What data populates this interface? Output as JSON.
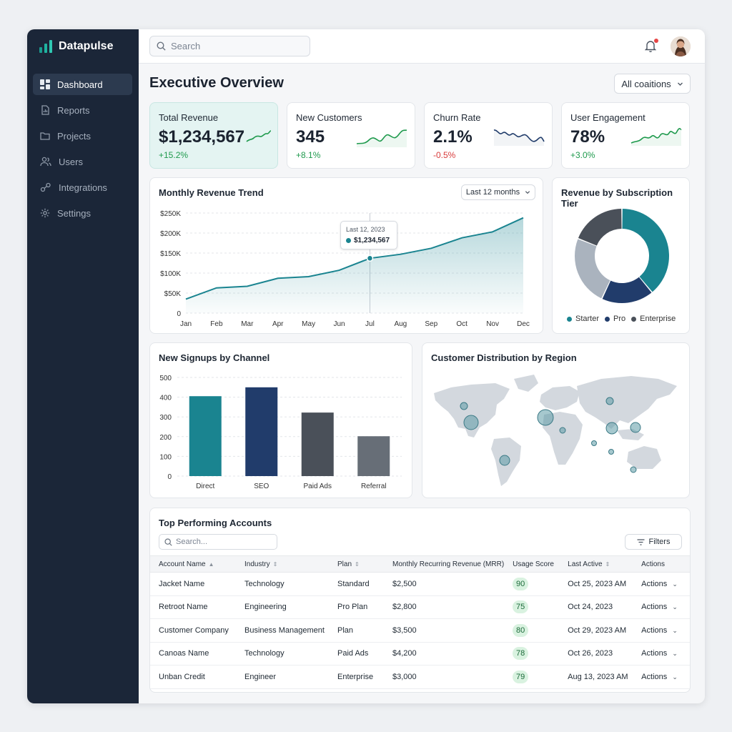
{
  "app": {
    "name": "Datapulse"
  },
  "sidebar": {
    "items": [
      {
        "label": "Dashboard",
        "icon": "dashboard-icon",
        "active": true
      },
      {
        "label": "Reports",
        "icon": "reports-icon"
      },
      {
        "label": "Projects",
        "icon": "folder-icon"
      },
      {
        "label": "Users",
        "icon": "users-icon"
      },
      {
        "label": "Integrations",
        "icon": "integrations-icon"
      },
      {
        "label": "Settings",
        "icon": "gear-icon"
      }
    ]
  },
  "topbar": {
    "search_placeholder": "Search"
  },
  "page": {
    "title": "Executive Overview",
    "filter": "All coaitions"
  },
  "kpis": [
    {
      "title": "Total Revenue",
      "value": "$1,234,567",
      "delta": "+15.2%",
      "trend": "up",
      "highlight": true
    },
    {
      "title": "New Customers",
      "value": "345",
      "delta": "+8.1%",
      "trend": "up"
    },
    {
      "title": "Churn Rate",
      "value": "2.1%",
      "delta": "-0.5%",
      "trend": "down"
    },
    {
      "title": "User Engagement",
      "value": "78%",
      "delta": "+3.0%",
      "trend": "up"
    }
  ],
  "colors": {
    "teal": "#1a8490",
    "navy": "#213c6b",
    "slate": "#4a5059",
    "gray": "#a9b2bd",
    "green": "#1f9a4d",
    "red": "#d83b3b"
  },
  "revenue_chart": {
    "title": "Monthly Revenue Trend",
    "range_label": "Last 12 months",
    "tooltip_date": "Last 12, 2023",
    "tooltip_value": "$1,234,567",
    "chart_data": {
      "type": "area",
      "categories": [
        "Jan",
        "Feb",
        "Mar",
        "Apr",
        "May",
        "Jun",
        "Jul",
        "Aug",
        "Sep",
        "Oct",
        "Nov",
        "Dec"
      ],
      "values": [
        35000,
        63000,
        67000,
        87000,
        91000,
        107000,
        137000,
        147000,
        162000,
        188000,
        203000,
        238000
      ],
      "y_ticks": [
        "$250K",
        "$200K",
        "$150K",
        "$100K",
        "$50K",
        "0"
      ],
      "ylim": [
        0,
        250000
      ],
      "highlight_index": 6,
      "grid": true
    }
  },
  "tier_chart": {
    "title": "Revenue by Subscription Tier",
    "chart_data": {
      "type": "pie",
      "slices": [
        {
          "value": 39,
          "color": "#1a8490"
        },
        {
          "value": 18,
          "color": "#213c6b"
        },
        {
          "value": 24,
          "color": "#aab3be"
        },
        {
          "value": 19,
          "color": "#4a5059"
        }
      ],
      "legend": [
        {
          "name": "Starter",
          "color": "#1a8490"
        },
        {
          "name": "Pro",
          "color": "#213c6b"
        },
        {
          "name": "Enterprise",
          "color": "#4a5059"
        }
      ]
    }
  },
  "signups_chart": {
    "title": "New Signups by Channel",
    "chart_data": {
      "type": "bar",
      "categories": [
        "Direct",
        "SEO",
        "Paid Ads",
        "Referral"
      ],
      "values": [
        405,
        450,
        322,
        202
      ],
      "colors": [
        "#1a8490",
        "#213c6b",
        "#4a5059",
        "#676e77"
      ],
      "y_ticks": [
        "500",
        "400",
        "300",
        "200",
        "100",
        "0"
      ],
      "ylim": [
        0,
        500
      ]
    }
  },
  "region_map": {
    "title": "Customer Distribution by Region"
  },
  "accounts": {
    "title": "Top Performing Accounts",
    "search_placeholder": "Search...",
    "filters_label": "Filters",
    "columns": [
      "Account Name",
      "Industry",
      "Plan",
      "Monthly Recurring Revenue (MRR)",
      "Usage Score",
      "Last Active",
      "Actions"
    ],
    "rows": [
      {
        "name": "Jacket Name",
        "industry": "Technology",
        "plan": "Standard",
        "mrr": "$2,500",
        "score": "90",
        "last": "Oct 25, 2023 AM",
        "action": "Actions"
      },
      {
        "name": "Retroot Name",
        "industry": "Engineering",
        "plan": "Pro Plan",
        "mrr": "$2,800",
        "score": "75",
        "last": "Oct 24, 2023",
        "action": "Actions"
      },
      {
        "name": "Customer Company",
        "industry": "Business Management",
        "plan": "Plan",
        "mrr": "$3,500",
        "score": "80",
        "last": "Oct 29, 2023 AM",
        "action": "Actions"
      },
      {
        "name": "Canoas Name",
        "industry": "Technology",
        "plan": "Paid Ads",
        "mrr": "$4,200",
        "score": "78",
        "last": "Oct 26, 2023",
        "action": "Actions"
      },
      {
        "name": "Unban Credit",
        "industry": "Engineer",
        "plan": "Enterprise",
        "mrr": "$3,000",
        "score": "79",
        "last": "Aug 13, 2023 AM",
        "action": "Actions"
      }
    ]
  }
}
